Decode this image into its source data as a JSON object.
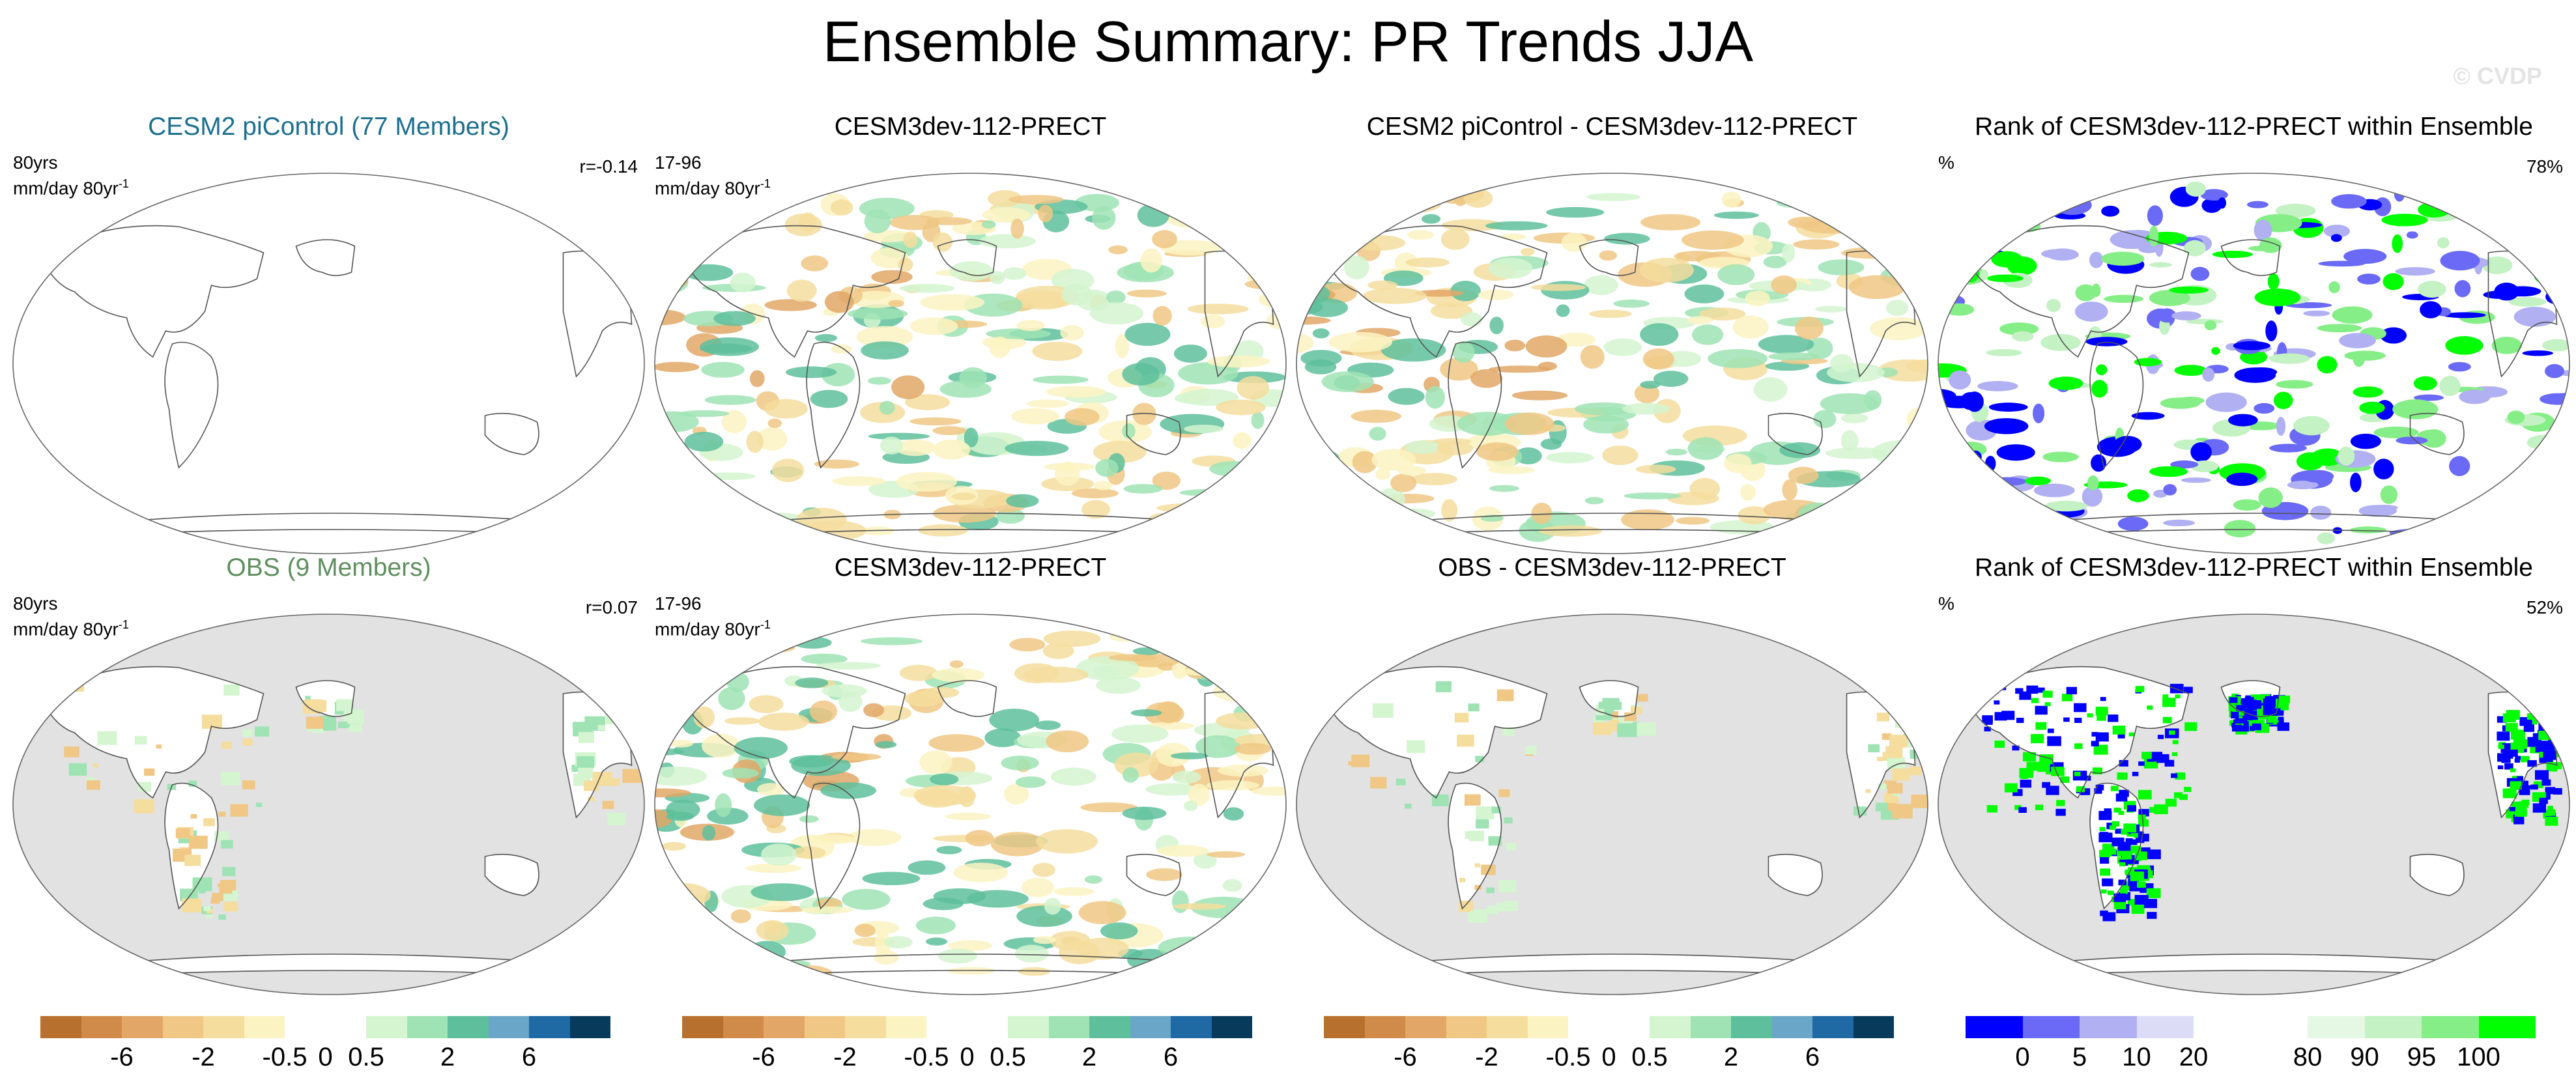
{
  "title": "Ensemble Summary: PR Trends JJA",
  "watermark": "© CVDP",
  "panels": [
    {
      "id": "p1",
      "title": "CESM2 piControl (77 Members)",
      "left_line1": "80yrs",
      "left_line2": "mm/day 80yr",
      "right": "r=-0.14",
      "style": "blank"
    },
    {
      "id": "p2",
      "title": "CESM3dev-112-PRECT",
      "left_line1": "17-96",
      "left_line2": "mm/day 80yr",
      "right": "",
      "style": "trend"
    },
    {
      "id": "p3",
      "title": "CESM2 piControl - CESM3dev-112-PRECT",
      "left_line1": "",
      "left_line2": "",
      "right": "",
      "style": "trend"
    },
    {
      "id": "p4",
      "title": "Rank of CESM3dev-112-PRECT within Ensemble",
      "left_line1": "%",
      "left_line2": "",
      "right": "78%",
      "style": "rank"
    },
    {
      "id": "p5",
      "title": "OBS (9 Members)",
      "left_line1": "80yrs",
      "left_line2": "mm/day 80yr",
      "right": "r=0.07",
      "style": "obs"
    },
    {
      "id": "p6",
      "title": "CESM3dev-112-PRECT",
      "left_line1": "17-96",
      "left_line2": "mm/day 80yr",
      "right": "",
      "style": "trend"
    },
    {
      "id": "p7",
      "title": "OBS - CESM3dev-112-PRECT",
      "left_line1": "",
      "left_line2": "",
      "right": "",
      "style": "obs"
    },
    {
      "id": "p8",
      "title": "Rank of CESM3dev-112-PRECT within Ensemble",
      "left_line1": "%",
      "left_line2": "",
      "right": "52%",
      "style": "rankobs"
    }
  ],
  "superscript": "-1",
  "trend_colorbar": {
    "colors": [
      "#b8702e",
      "#d08a4a",
      "#e2a766",
      "#f0c784",
      "#f5dd9e",
      "#fbf3c2",
      "#ffffff",
      "#ffffff",
      "#d4f5d0",
      "#9fe3b4",
      "#5ebf9c",
      "#6aa6c8",
      "#1f6aa5",
      "#083a5c"
    ],
    "labels": [
      "-6",
      "-2",
      "-0.5",
      "0",
      "0.5",
      "2",
      "6"
    ]
  },
  "rank_colorbar": {
    "colors": [
      "#0000ff",
      "#6a6af6",
      "#b0b0f2",
      "#dcdcf6",
      "#ffffff",
      "#ffffff",
      "#e4f8e4",
      "#c4f2c4",
      "#86ee86",
      "#00ff00"
    ],
    "labels": [
      "0",
      "5",
      "10",
      "20",
      "80",
      "90",
      "95",
      "100"
    ]
  },
  "colors": {
    "land_outline": "#555555",
    "obs_ocean": "#e2e2e2",
    "title_cesm2": "#1d6f8f",
    "title_obs": "#5f8f5f"
  }
}
